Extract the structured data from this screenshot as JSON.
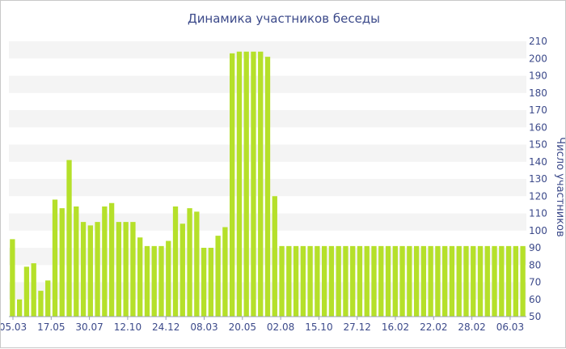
{
  "chart_data": {
    "type": "bar",
    "title": "Динамика участников беседы",
    "ylabel": "Число участников",
    "ylim": [
      50,
      210
    ],
    "y_ticks": [
      50,
      60,
      70,
      80,
      90,
      100,
      110,
      120,
      130,
      140,
      150,
      160,
      170,
      180,
      190,
      200,
      210
    ],
    "x_tick_labels": [
      "05.03",
      "17.05",
      "30.07",
      "12.10",
      "24.12",
      "08.03",
      "20.05",
      "02.08",
      "15.10",
      "27.12",
      "16.02",
      "22.02",
      "28.02",
      "06.03"
    ],
    "grid": "horizontal alternating bands",
    "series": [
      {
        "color": "#b5e02a",
        "values": [
          95,
          60,
          79,
          81,
          65,
          71,
          118,
          113,
          141,
          114,
          105,
          103,
          105,
          114,
          116,
          105,
          105,
          105,
          96,
          91,
          91,
          91,
          94,
          114,
          104,
          113,
          111,
          90,
          90,
          97,
          102,
          203,
          204,
          204,
          204,
          204,
          201,
          120,
          91,
          91,
          91,
          91,
          91,
          91,
          91,
          91,
          91,
          91,
          91,
          91,
          91,
          91,
          91,
          91,
          91,
          91,
          91,
          91,
          91,
          91,
          91,
          91,
          91,
          91,
          91,
          91,
          91,
          91,
          91,
          91,
          91,
          91,
          91
        ]
      }
    ]
  }
}
